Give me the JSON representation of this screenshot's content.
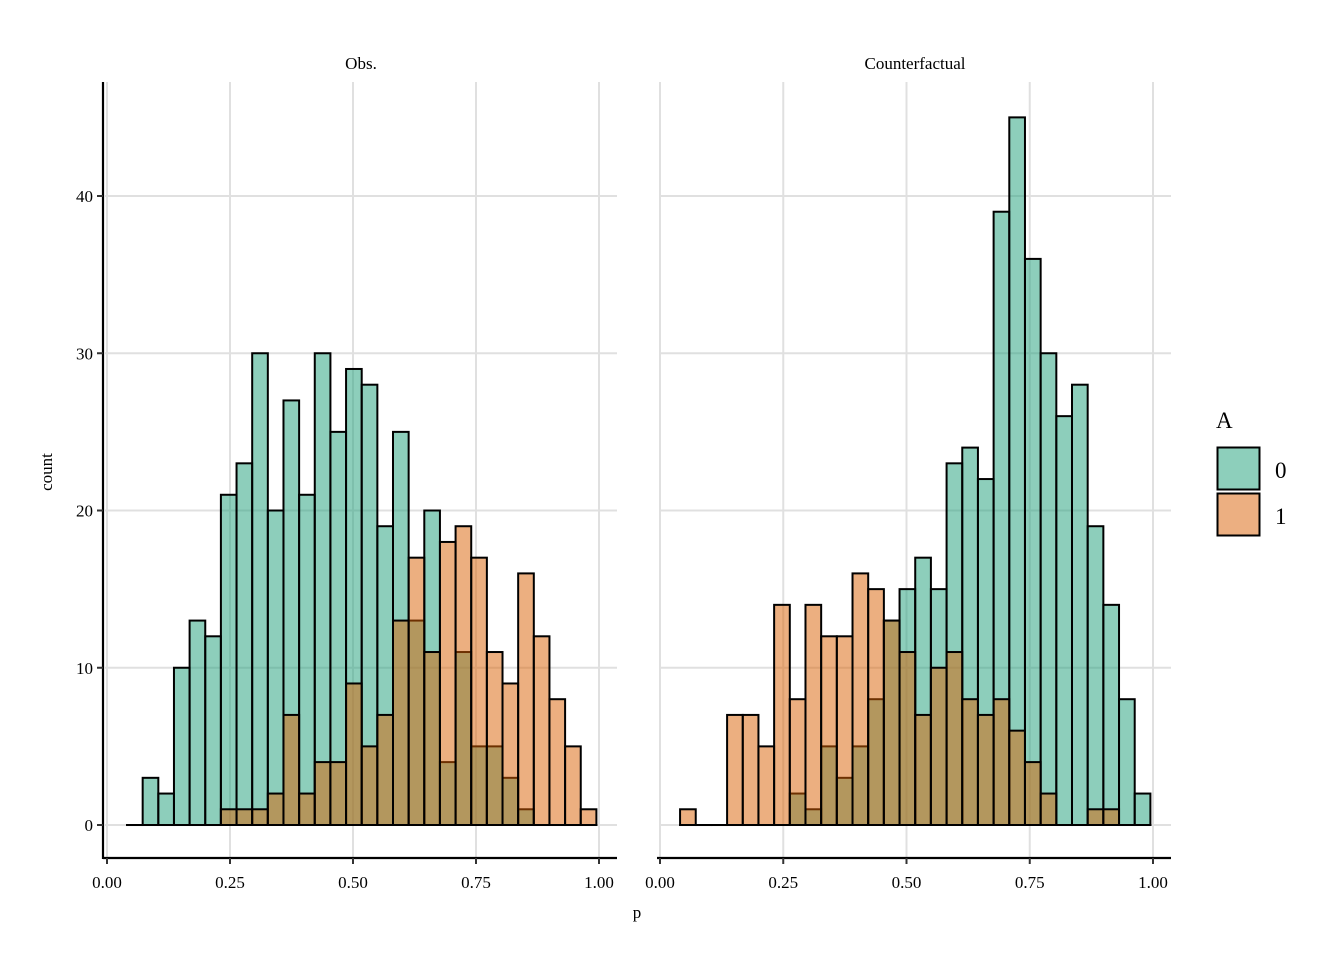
{
  "chart_data": {
    "type": "bar",
    "subtype": "overlapping-histogram",
    "xlabel": "p",
    "ylabel": "count",
    "xlim": [
      0,
      1
    ],
    "ylim": [
      0,
      45
    ],
    "x_ticks": [
      "0.00",
      "0.25",
      "0.50",
      "0.75",
      "1.00"
    ],
    "x_tick_values": [
      0,
      0.25,
      0.5,
      0.75,
      1
    ],
    "y_ticks": [
      "0",
      "10",
      "20",
      "30",
      "40"
    ],
    "y_tick_values": [
      0,
      10,
      20,
      30,
      40
    ],
    "grid": true,
    "bin_start": 0.0407,
    "bin_width": 0.0318,
    "legend": {
      "title": "A",
      "placement": "right",
      "entries": [
        {
          "label": "0",
          "color": "#1B9E77"
        },
        {
          "label": "1",
          "color": "#D95F02"
        }
      ]
    },
    "panels": [
      {
        "title": "Obs.",
        "series": [
          {
            "name": "0",
            "values": [
              0,
              3,
              2,
              10,
              13,
              12,
              21,
              23,
              30,
              20,
              27,
              21,
              30,
              25,
              29,
              28,
              19,
              25,
              13,
              20,
              4,
              11,
              5,
              5,
              3,
              1,
              0,
              0,
              0,
              0
            ]
          },
          {
            "name": "1",
            "values": [
              0,
              0,
              0,
              0,
              0,
              0,
              1,
              1,
              1,
              2,
              7,
              2,
              4,
              4,
              9,
              5,
              7,
              13,
              17,
              11,
              18,
              19,
              17,
              11,
              9,
              16,
              12,
              8,
              5,
              1
            ]
          }
        ]
      },
      {
        "title": "Counterfactual",
        "series": [
          {
            "name": "0",
            "values": [
              0,
              0,
              0,
              0,
              0,
              0,
              0,
              2,
              1,
              5,
              3,
              5,
              8,
              13,
              15,
              17,
              15,
              23,
              24,
              22,
              39,
              45,
              36,
              30,
              26,
              28,
              19,
              14,
              8,
              2
            ]
          },
          {
            "name": "1",
            "values": [
              1,
              0,
              0,
              7,
              7,
              5,
              14,
              8,
              14,
              12,
              12,
              16,
              15,
              13,
              11,
              7,
              10,
              11,
              8,
              7,
              8,
              6,
              4,
              2,
              0,
              0,
              1,
              1,
              0,
              0
            ]
          }
        ]
      }
    ]
  }
}
